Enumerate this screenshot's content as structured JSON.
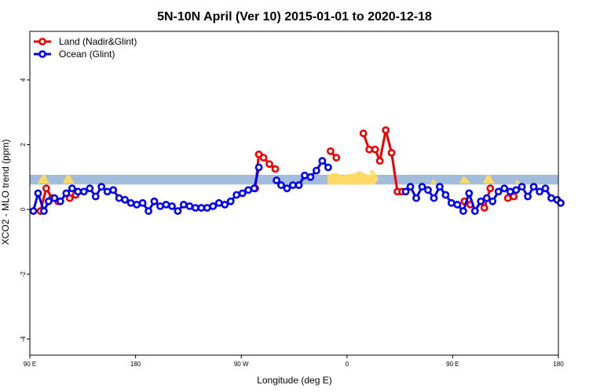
{
  "chart_data": {
    "type": "line",
    "title": "5N-10N April (Ver 10)   2015-01-01 to 2020-12-18",
    "xlabel": "Longitude (deg E)",
    "ylabel": "XCO2 - MLO trend (ppm)",
    "x_tick_labels": [
      "90 E",
      "180",
      "90 W",
      "0",
      "90 E",
      "180"
    ],
    "x_tick_values": [
      90,
      180,
      270,
      360,
      450,
      540
    ],
    "xlim": [
      90,
      540
    ],
    "y_ticks": [
      -4,
      -2,
      0,
      2,
      4
    ],
    "ylim": [
      -4.5,
      5.5
    ],
    "grid": false,
    "legend_position": "top-left",
    "land_band": {
      "ymin": 0.77,
      "ymax": 1.07,
      "color": "#A4BCDC"
    },
    "colors": {
      "land": "#FFD966",
      "ocean_band": "#A4BCDC"
    },
    "series": [
      {
        "name": "Land (Nadir&Glint)",
        "color": "#EE0000",
        "segments": [
          [
            [
              99,
              -0.05
            ],
            [
              104,
              0.65
            ],
            [
              109,
              0.35
            ],
            [
              114,
              0.25
            ]
          ],
          [
            [
              124,
              0.35
            ],
            [
              129,
              0.45
            ]
          ],
          [
            [
              282,
              0.65
            ],
            [
              285,
              1.7
            ],
            [
              289,
              1.6
            ],
            [
              294,
              1.4
            ],
            [
              299,
              1.25
            ]
          ],
          [
            [
              346,
              1.8
            ],
            [
              351,
              1.6
            ]
          ],
          [
            [
              374,
              2.35
            ],
            [
              379,
              1.85
            ],
            [
              384,
              1.85
            ],
            [
              388,
              1.5
            ],
            [
              393,
              2.45
            ],
            [
              398,
              1.75
            ],
            [
              403,
              0.55
            ],
            [
              407,
              0.55
            ]
          ],
          [
            [
              460,
              0.25
            ],
            [
              465,
              0.15
            ]
          ],
          [
            [
              477,
              0.05
            ],
            [
              482,
              0.65
            ]
          ],
          [
            [
              497,
              0.35
            ],
            [
              502,
              0.4
            ]
          ]
        ]
      },
      {
        "name": "Ocean (Glint)",
        "color": "#0000EE",
        "segments": [
          [
            [
              93,
              -0.05
            ],
            [
              97,
              0.5
            ],
            [
              102,
              -0.05
            ],
            [
              106,
              0.25
            ],
            [
              111,
              0.35
            ],
            [
              116,
              0.25
            ],
            [
              121,
              0.5
            ],
            [
              126,
              0.65
            ],
            [
              131,
              0.55
            ],
            [
              136,
              0.55
            ],
            [
              141,
              0.65
            ],
            [
              146,
              0.4
            ],
            [
              151,
              0.7
            ],
            [
              156,
              0.55
            ],
            [
              161,
              0.6
            ],
            [
              166,
              0.35
            ],
            [
              171,
              0.3
            ],
            [
              176,
              0.2
            ],
            [
              181,
              0.15
            ],
            [
              186,
              0.2
            ],
            [
              191,
              -0.05
            ],
            [
              196,
              0.25
            ],
            [
              201,
              0.1
            ],
            [
              206,
              0.15
            ],
            [
              211,
              0.1
            ],
            [
              216,
              -0.05
            ],
            [
              221,
              0.15
            ],
            [
              226,
              0.1
            ],
            [
              231,
              0.05
            ],
            [
              236,
              0.05
            ],
            [
              241,
              0.05
            ],
            [
              246,
              0.1
            ],
            [
              251,
              0.2
            ],
            [
              256,
              0.15
            ],
            [
              261,
              0.25
            ],
            [
              266,
              0.45
            ],
            [
              271,
              0.5
            ],
            [
              276,
              0.6
            ],
            [
              281,
              0.65
            ],
            [
              285,
              1.3
            ]
          ],
          [
            [
              300,
              0.9
            ],
            [
              304,
              0.75
            ],
            [
              309,
              0.65
            ],
            [
              314,
              0.75
            ],
            [
              319,
              0.75
            ],
            [
              324,
              1.05
            ],
            [
              329,
              1.0
            ],
            [
              334,
              1.2
            ],
            [
              339,
              1.5
            ],
            [
              344,
              1.3
            ]
          ],
          [
            [
              410,
              0.55
            ],
            [
              414,
              0.7
            ],
            [
              419,
              0.35
            ],
            [
              424,
              0.7
            ],
            [
              429,
              0.6
            ],
            [
              434,
              0.35
            ],
            [
              439,
              0.7
            ],
            [
              444,
              0.45
            ],
            [
              449,
              0.2
            ],
            [
              454,
              0.15
            ],
            [
              459,
              -0.05
            ],
            [
              464,
              0.5
            ],
            [
              469,
              -0.05
            ],
            [
              474,
              0.25
            ],
            [
              479,
              0.35
            ],
            [
              484,
              0.25
            ],
            [
              489,
              0.55
            ],
            [
              494,
              0.65
            ],
            [
              499,
              0.55
            ],
            [
              504,
              0.6
            ],
            [
              509,
              0.7
            ],
            [
              514,
              0.4
            ],
            [
              519,
              0.7
            ],
            [
              524,
              0.55
            ],
            [
              529,
              0.65
            ],
            [
              534,
              0.35
            ],
            [
              539,
              0.3
            ],
            [
              542,
              0.2
            ]
          ]
        ]
      }
    ]
  }
}
